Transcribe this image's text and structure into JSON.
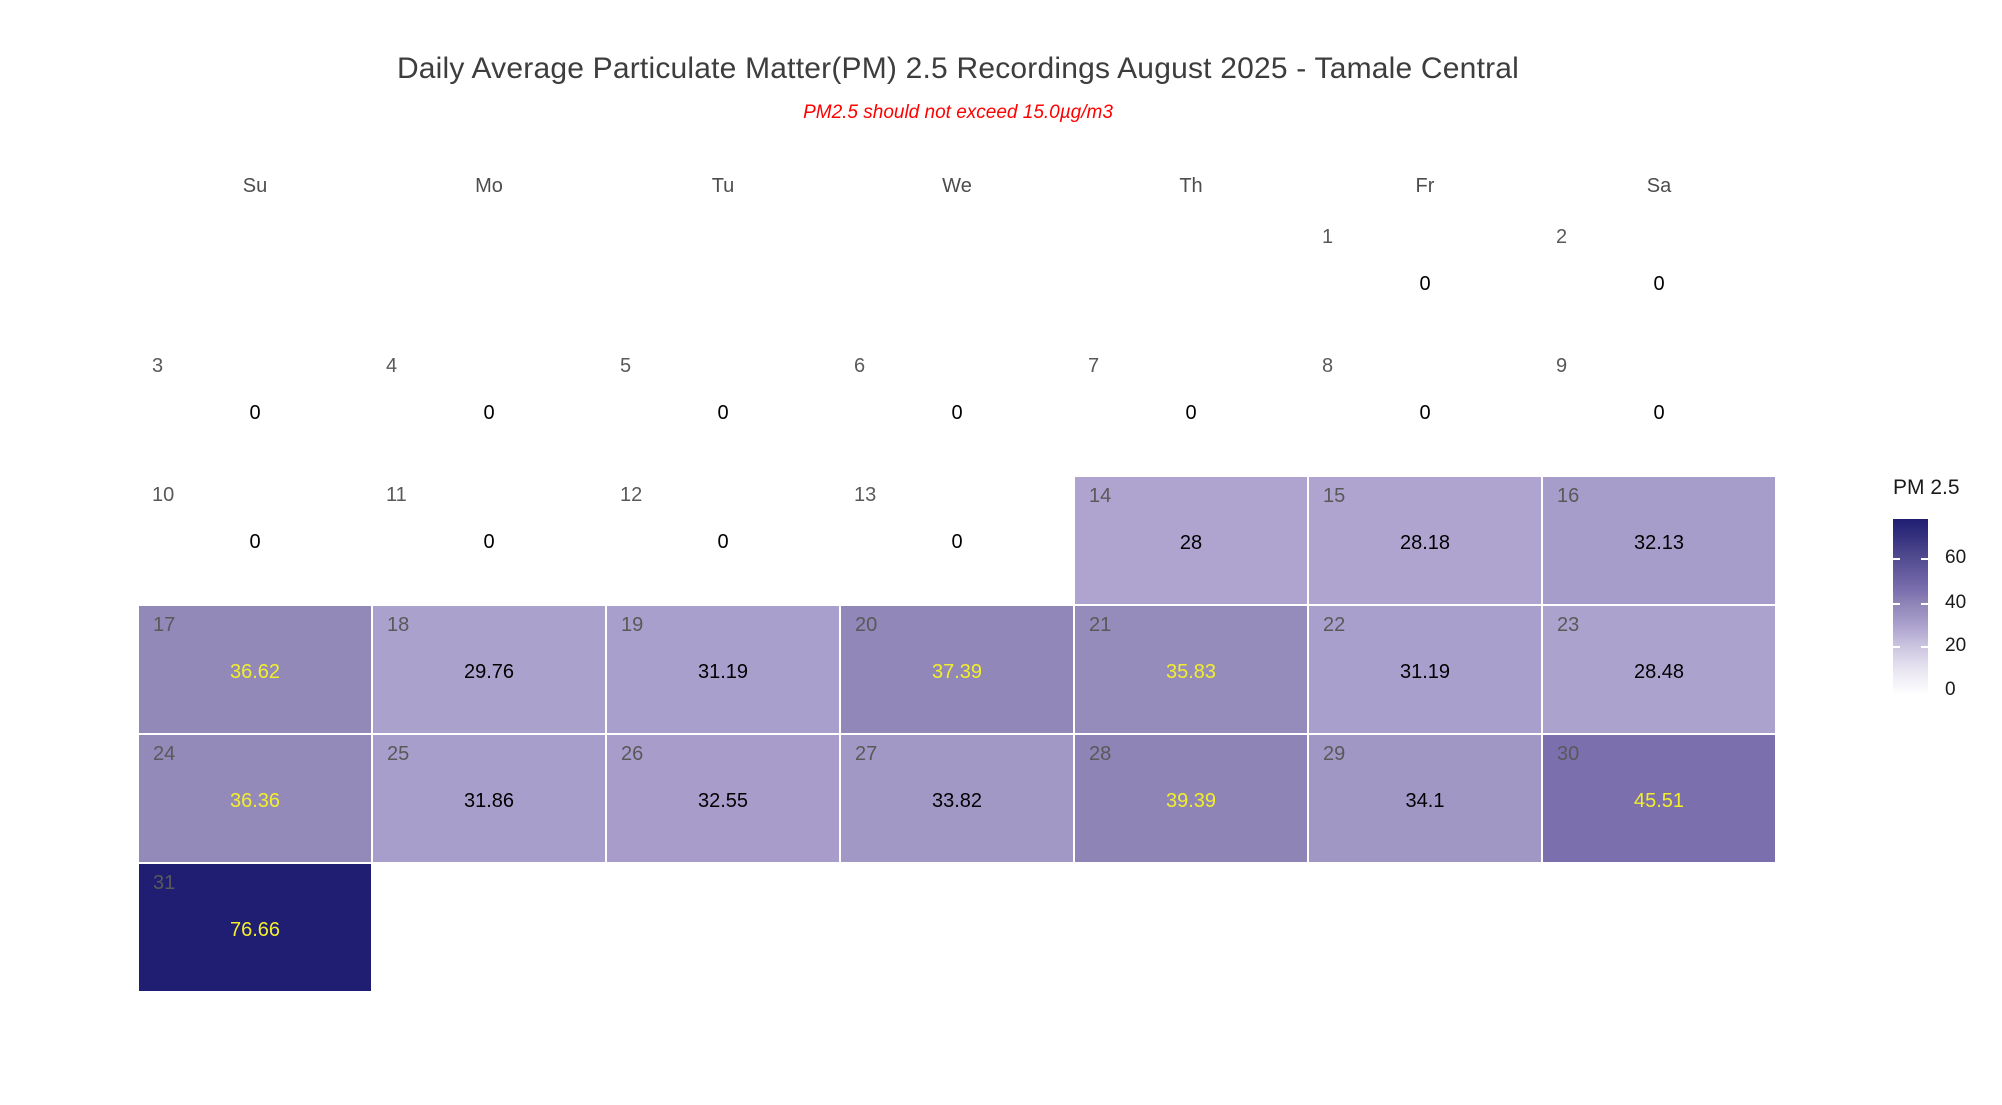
{
  "title": "Daily Average Particulate Matter(PM) 2.5 Recordings August 2025 -  Tamale Central",
  "subtitle": "PM2.5 should not exceed 15.0µg/m3",
  "weekday_headers": [
    "Su",
    "Mo",
    "Tu",
    "We",
    "Th",
    "Fr",
    "Sa"
  ],
  "legend": {
    "title": "PM 2.5",
    "ticks": [
      "60",
      "40",
      "20",
      "0"
    ]
  },
  "colors": {
    "title_text": "#3d3d3d",
    "subtitle_text": "#ff0000",
    "day_number_text": "#595959",
    "value_text_dark": "#000000",
    "value_text_highlight": "#f2ef2a",
    "scale_low": "#ffffff",
    "scale_high": "#1f1e73"
  },
  "chart_data": {
    "type": "heatmap",
    "subtype": "calendar",
    "title": "Daily Average Particulate Matter(PM) 2.5 Recordings August 2025 -  Tamale Central",
    "subtitle": "PM2.5 should not exceed 15.0µg/m3",
    "month": "August 2025",
    "location": "Tamale Central",
    "threshold_note_value": 15.0,
    "legend_title": "PM 2.5",
    "legend_ticks": [
      0,
      20,
      40,
      60
    ],
    "value_range": [
      0,
      76.66
    ],
    "weekdays": [
      "Su",
      "Mo",
      "Tu",
      "We",
      "Th",
      "Fr",
      "Sa"
    ],
    "days": [
      {
        "day": 1,
        "value": 0,
        "display": "0",
        "fill": "#ffffff",
        "text_color": "#000000"
      },
      {
        "day": 2,
        "value": 0,
        "display": "0",
        "fill": "#ffffff",
        "text_color": "#000000"
      },
      {
        "day": 3,
        "value": 0,
        "display": "0",
        "fill": "#ffffff",
        "text_color": "#000000"
      },
      {
        "day": 4,
        "value": 0,
        "display": "0",
        "fill": "#ffffff",
        "text_color": "#000000"
      },
      {
        "day": 5,
        "value": 0,
        "display": "0",
        "fill": "#ffffff",
        "text_color": "#000000"
      },
      {
        "day": 6,
        "value": 0,
        "display": "0",
        "fill": "#ffffff",
        "text_color": "#000000"
      },
      {
        "day": 7,
        "value": 0,
        "display": "0",
        "fill": "#ffffff",
        "text_color": "#000000"
      },
      {
        "day": 8,
        "value": 0,
        "display": "0",
        "fill": "#ffffff",
        "text_color": "#000000"
      },
      {
        "day": 9,
        "value": 0,
        "display": "0",
        "fill": "#ffffff",
        "text_color": "#000000"
      },
      {
        "day": 10,
        "value": 0,
        "display": "0",
        "fill": "#ffffff",
        "text_color": "#000000"
      },
      {
        "day": 11,
        "value": 0,
        "display": "0",
        "fill": "#ffffff",
        "text_color": "#000000"
      },
      {
        "day": 12,
        "value": 0,
        "display": "0",
        "fill": "#ffffff",
        "text_color": "#000000"
      },
      {
        "day": 13,
        "value": 0,
        "display": "0",
        "fill": "#ffffff",
        "text_color": "#000000"
      },
      {
        "day": 14,
        "value": 28,
        "display": "28",
        "fill": "#aea4cf",
        "text_color": "#000000"
      },
      {
        "day": 15,
        "value": 28.18,
        "display": "28.18",
        "fill": "#aea4cf",
        "text_color": "#000000"
      },
      {
        "day": 16,
        "value": 32.13,
        "display": "32.13",
        "fill": "#a79dca",
        "text_color": "#000000"
      },
      {
        "day": 17,
        "value": 36.62,
        "display": "36.62",
        "fill": "#9389b9",
        "text_color": "#f2ef2a"
      },
      {
        "day": 18,
        "value": 29.76,
        "display": "29.76",
        "fill": "#aba1cd",
        "text_color": "#000000"
      },
      {
        "day": 19,
        "value": 31.19,
        "display": "31.19",
        "fill": "#a99fcc",
        "text_color": "#000000"
      },
      {
        "day": 20,
        "value": 37.39,
        "display": "37.39",
        "fill": "#9187b8",
        "text_color": "#f2ef2a"
      },
      {
        "day": 21,
        "value": 35.83,
        "display": "35.83",
        "fill": "#968cbb",
        "text_color": "#f2ef2a"
      },
      {
        "day": 22,
        "value": 31.19,
        "display": "31.19",
        "fill": "#a99fcc",
        "text_color": "#000000"
      },
      {
        "day": 23,
        "value": 28.48,
        "display": "28.48",
        "fill": "#aca2ce",
        "text_color": "#000000"
      },
      {
        "day": 24,
        "value": 36.36,
        "display": "36.36",
        "fill": "#948aba",
        "text_color": "#f2ef2a"
      },
      {
        "day": 25,
        "value": 31.86,
        "display": "31.86",
        "fill": "#a89ecb",
        "text_color": "#000000"
      },
      {
        "day": 26,
        "value": 32.55,
        "display": "32.55",
        "fill": "#a79cca",
        "text_color": "#000000"
      },
      {
        "day": 27,
        "value": 33.82,
        "display": "33.82",
        "fill": "#a298c6",
        "text_color": "#000000"
      },
      {
        "day": 28,
        "value": 39.39,
        "display": "39.39",
        "fill": "#8e84b6",
        "text_color": "#f2ef2a"
      },
      {
        "day": 29,
        "value": 34.1,
        "display": "34.1",
        "fill": "#a197c5",
        "text_color": "#000000"
      },
      {
        "day": 30,
        "value": 45.51,
        "display": "45.51",
        "fill": "#7b6fae",
        "text_color": "#f2ef2a"
      },
      {
        "day": 31,
        "value": 76.66,
        "display": "76.66",
        "fill": "#1f1e73",
        "text_color": "#f2ef2a"
      }
    ]
  }
}
